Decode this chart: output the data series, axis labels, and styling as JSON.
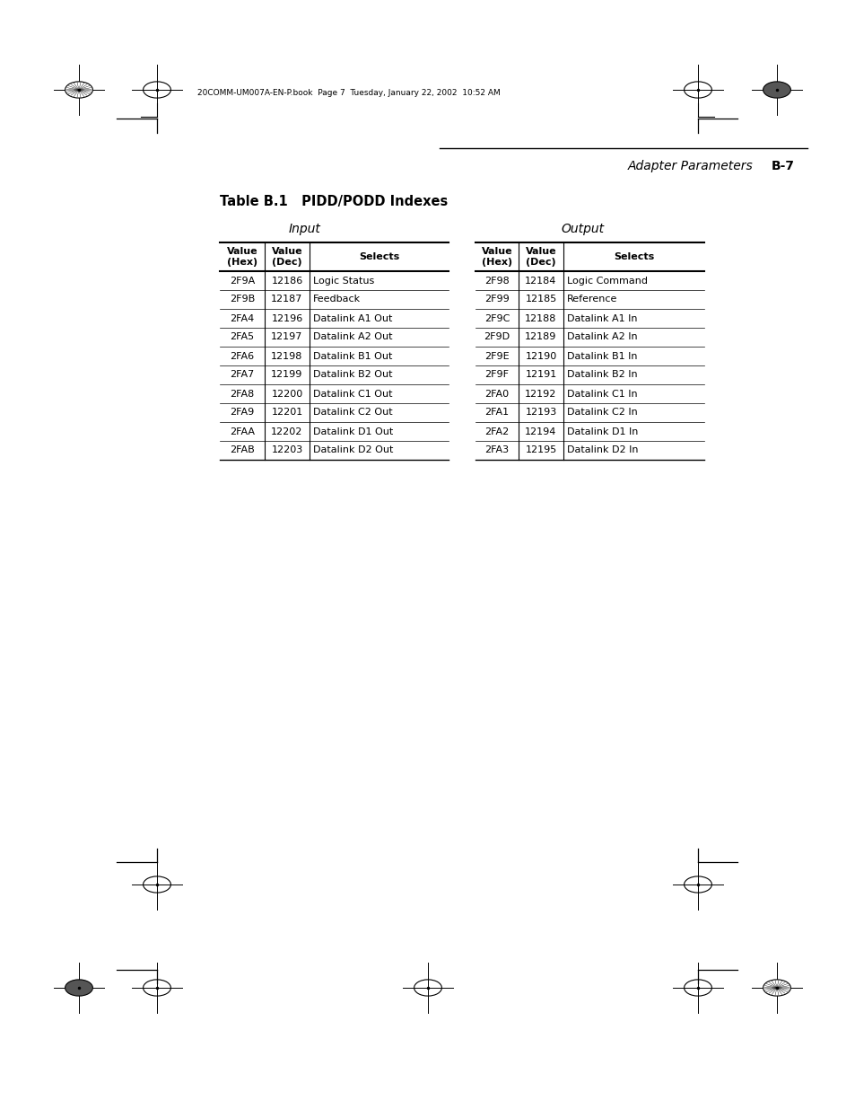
{
  "page_title": "Adapter Parameters",
  "page_number": "B-7",
  "header_text": "20COMM-UM007A-EN-P.book  Page 7  Tuesday, January 22, 2002  10:52 AM",
  "table_title": "Table B.1   PIDD/PODD Indexes",
  "input_label": "Input",
  "output_label": "Output",
  "col_headers": [
    "Value\n(Hex)",
    "Value\n(Dec)",
    "Selects"
  ],
  "input_data": [
    [
      "2F9A",
      "12186",
      "Logic Status"
    ],
    [
      "2F9B",
      "12187",
      "Feedback"
    ],
    [
      "2FA4",
      "12196",
      "Datalink A1 Out"
    ],
    [
      "2FA5",
      "12197",
      "Datalink A2 Out"
    ],
    [
      "2FA6",
      "12198",
      "Datalink B1 Out"
    ],
    [
      "2FA7",
      "12199",
      "Datalink B2 Out"
    ],
    [
      "2FA8",
      "12200",
      "Datalink C1 Out"
    ],
    [
      "2FA9",
      "12201",
      "Datalink C2 Out"
    ],
    [
      "2FAA",
      "12202",
      "Datalink D1 Out"
    ],
    [
      "2FAB",
      "12203",
      "Datalink D2 Out"
    ]
  ],
  "output_data": [
    [
      "2F98",
      "12184",
      "Logic Command"
    ],
    [
      "2F99",
      "12185",
      "Reference"
    ],
    [
      "2F9C",
      "12188",
      "Datalink A1 In"
    ],
    [
      "2F9D",
      "12189",
      "Datalink A2 In"
    ],
    [
      "2F9E",
      "12190",
      "Datalink B1 In"
    ],
    [
      "2F9F",
      "12191",
      "Datalink B2 In"
    ],
    [
      "2FA0",
      "12192",
      "Datalink C1 In"
    ],
    [
      "2FA1",
      "12193",
      "Datalink C2 In"
    ],
    [
      "2FA2",
      "12194",
      "Datalink D1 In"
    ],
    [
      "2FA3",
      "12195",
      "Datalink D2 In"
    ]
  ],
  "bg_color": "#ffffff",
  "text_color": "#000000",
  "line_color": "#000000"
}
